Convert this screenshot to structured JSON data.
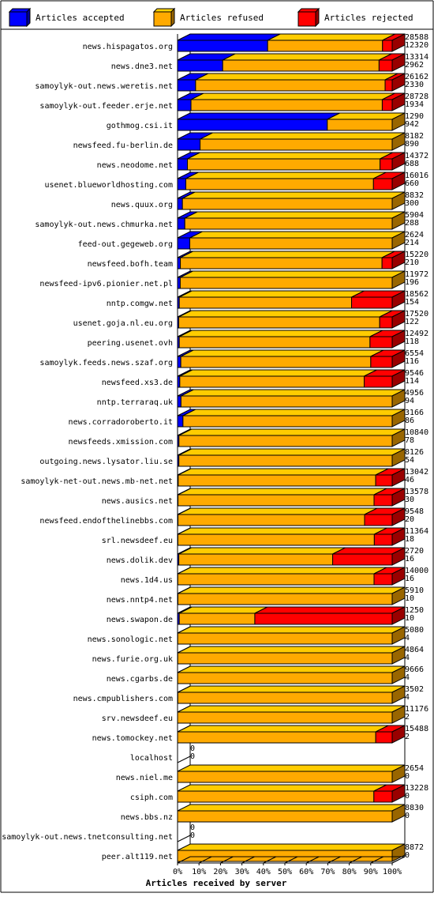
{
  "chart_data": {
    "type": "bar",
    "stacked": true,
    "orientation": "horizontal",
    "xlabel": "Articles received by server",
    "x_ticks": [
      "0%",
      "10%",
      "20%",
      "30%",
      "40%",
      "50%",
      "60%",
      "70%",
      "80%",
      "90%",
      "100%"
    ],
    "legend": [
      {
        "name": "Articles accepted",
        "color": "#0000ff"
      },
      {
        "name": "Articles refused",
        "color": "#ffaa00"
      },
      {
        "name": "Articles rejected",
        "color": "#ff0000"
      }
    ],
    "legend_position": "top",
    "grid": false,
    "rows": [
      {
        "server": "news.hispagatos.org",
        "accepted": 12000,
        "refused": 15300,
        "rejected": 1288,
        "total_label": "28588",
        "second_label": "12320"
      },
      {
        "server": "news.dne3.net",
        "accepted": 2800,
        "refused": 9700,
        "rejected": 814,
        "total_label": "13314",
        "second_label": "2962"
      },
      {
        "server": "samoylyk-out.news.weretis.net",
        "accepted": 2200,
        "refused": 23100,
        "rejected": 862,
        "total_label": "26162",
        "second_label": "2330"
      },
      {
        "server": "samoylyk-out.feeder.erje.net",
        "accepted": 1800,
        "refused": 25600,
        "rejected": 1328,
        "total_label": "28728",
        "second_label": "1934"
      },
      {
        "server": "gothmog.csi.it",
        "accepted": 900,
        "refused": 390,
        "rejected": 0,
        "total_label": "1290",
        "second_label": "942"
      },
      {
        "server": "newsfeed.fu-berlin.de",
        "accepted": 860,
        "refused": 7322,
        "rejected": 0,
        "total_label": "8182",
        "second_label": "890"
      },
      {
        "server": "news.neodome.net",
        "accepted": 660,
        "refused": 12900,
        "rejected": 812,
        "total_label": "14372",
        "second_label": "688"
      },
      {
        "server": "usenet.blueworldhosting.com",
        "accepted": 620,
        "refused": 14000,
        "rejected": 1396,
        "total_label": "16016",
        "second_label": "660"
      },
      {
        "server": "news.quux.org",
        "accepted": 200,
        "refused": 8632,
        "rejected": 0,
        "total_label": "8832",
        "second_label": "300"
      },
      {
        "server": "samoylyk-out.news.chmurka.net",
        "accepted": 200,
        "refused": 5704,
        "rejected": 0,
        "total_label": "5904",
        "second_label": "288"
      },
      {
        "server": "feed-out.gegeweb.org",
        "accepted": 150,
        "refused": 2474,
        "rejected": 0,
        "total_label": "2624",
        "second_label": "214"
      },
      {
        "server": "newsfeed.bofh.team",
        "accepted": 200,
        "refused": 14300,
        "rejected": 720,
        "total_label": "15220",
        "second_label": "210"
      },
      {
        "server": "newsfeed-ipv6.pionier.net.pl",
        "accepted": 150,
        "refused": 11822,
        "rejected": 0,
        "total_label": "11972",
        "second_label": "196"
      },
      {
        "server": "nntp.comgw.net",
        "accepted": 150,
        "refused": 14900,
        "rejected": 3512,
        "total_label": "18562",
        "second_label": "154"
      },
      {
        "server": "usenet.goja.nl.eu.org",
        "accepted": 100,
        "refused": 16400,
        "rejected": 1020,
        "total_label": "17520",
        "second_label": "122"
      },
      {
        "server": "peering.usenet.ovh",
        "accepted": 100,
        "refused": 11100,
        "rejected": 1292,
        "total_label": "12492",
        "second_label": "118"
      },
      {
        "server": "samoylyk.feeds.news.szaf.org",
        "accepted": 100,
        "refused": 5800,
        "rejected": 654,
        "total_label": "6554",
        "second_label": "116"
      },
      {
        "server": "newsfeed.xs3.de",
        "accepted": 100,
        "refused": 8200,
        "rejected": 1246,
        "total_label": "9546",
        "second_label": "114"
      },
      {
        "server": "nntp.terraraq.uk",
        "accepted": 80,
        "refused": 4876,
        "rejected": 0,
        "total_label": "4956",
        "second_label": "94"
      },
      {
        "server": "news.corradoroberto.it",
        "accepted": 80,
        "refused": 3086,
        "rejected": 0,
        "total_label": "3166",
        "second_label": "86"
      },
      {
        "server": "newsfeeds.xmission.com",
        "accepted": 70,
        "refused": 10770,
        "rejected": 0,
        "total_label": "10840",
        "second_label": "78"
      },
      {
        "server": "outgoing.news.lysator.liu.se",
        "accepted": 50,
        "refused": 8076,
        "rejected": 0,
        "total_label": "8126",
        "second_label": "54"
      },
      {
        "server": "samoylyk-net-out.news.mb-net.net",
        "accepted": 40,
        "refused": 12000,
        "rejected": 1002,
        "total_label": "13042",
        "second_label": "46"
      },
      {
        "server": "news.ausics.net",
        "accepted": 30,
        "refused": 12400,
        "rejected": 1148,
        "total_label": "13578",
        "second_label": "30"
      },
      {
        "server": "newsfeed.endofthelinebbs.com",
        "accepted": 20,
        "refused": 8300,
        "rejected": 1228,
        "total_label": "9548",
        "second_label": "20"
      },
      {
        "server": "srl.newsdeef.eu",
        "accepted": 18,
        "refused": 10400,
        "rejected": 946,
        "total_label": "11364",
        "second_label": "18"
      },
      {
        "server": "news.dolik.dev",
        "accepted": 16,
        "refused": 1950,
        "rejected": 754,
        "total_label": "2720",
        "second_label": "16"
      },
      {
        "server": "news.1d4.us",
        "accepted": 16,
        "refused": 12800,
        "rejected": 1184,
        "total_label": "14000",
        "second_label": "16"
      },
      {
        "server": "news.nntp4.net",
        "accepted": 10,
        "refused": 5900,
        "rejected": 0,
        "total_label": "5910",
        "second_label": "10"
      },
      {
        "server": "news.swapon.de",
        "accepted": 10,
        "refused": 440,
        "rejected": 800,
        "total_label": "1250",
        "second_label": "10"
      },
      {
        "server": "news.sonologic.net",
        "accepted": 4,
        "refused": 5076,
        "rejected": 0,
        "total_label": "5080",
        "second_label": "4"
      },
      {
        "server": "news.furie.org.uk",
        "accepted": 4,
        "refused": 4860,
        "rejected": 0,
        "total_label": "4864",
        "second_label": "4"
      },
      {
        "server": "news.cgarbs.de",
        "accepted": 4,
        "refused": 9662,
        "rejected": 0,
        "total_label": "9666",
        "second_label": "4"
      },
      {
        "server": "news.cmpublishers.com",
        "accepted": 4,
        "refused": 3498,
        "rejected": 0,
        "total_label": "3502",
        "second_label": "4"
      },
      {
        "server": "srv.newsdeef.eu",
        "accepted": 2,
        "refused": 11174,
        "rejected": 0,
        "total_label": "11176",
        "second_label": "2"
      },
      {
        "server": "news.tomockey.net",
        "accepted": 2,
        "refused": 14300,
        "rejected": 1186,
        "total_label": "15488",
        "second_label": "2"
      },
      {
        "server": "localhost",
        "accepted": 0,
        "refused": 0,
        "rejected": 0,
        "total_label": "0",
        "second_label": "0"
      },
      {
        "server": "news.niel.me",
        "accepted": 0,
        "refused": 2654,
        "rejected": 0,
        "total_label": "2654",
        "second_label": "0"
      },
      {
        "server": "csiph.com",
        "accepted": 0,
        "refused": 12100,
        "rejected": 1128,
        "total_label": "13228",
        "second_label": "0"
      },
      {
        "server": "news.bbs.nz",
        "accepted": 0,
        "refused": 8830,
        "rejected": 0,
        "total_label": "8830",
        "second_label": "0"
      },
      {
        "server": "samoylyk-out.news.tnetconsulting.net",
        "accepted": 0,
        "refused": 0,
        "rejected": 0,
        "total_label": "0",
        "second_label": "0"
      },
      {
        "server": "peer.alt119.net",
        "accepted": 0,
        "refused": 8872,
        "rejected": 0,
        "total_label": "8872",
        "second_label": "0"
      }
    ]
  }
}
